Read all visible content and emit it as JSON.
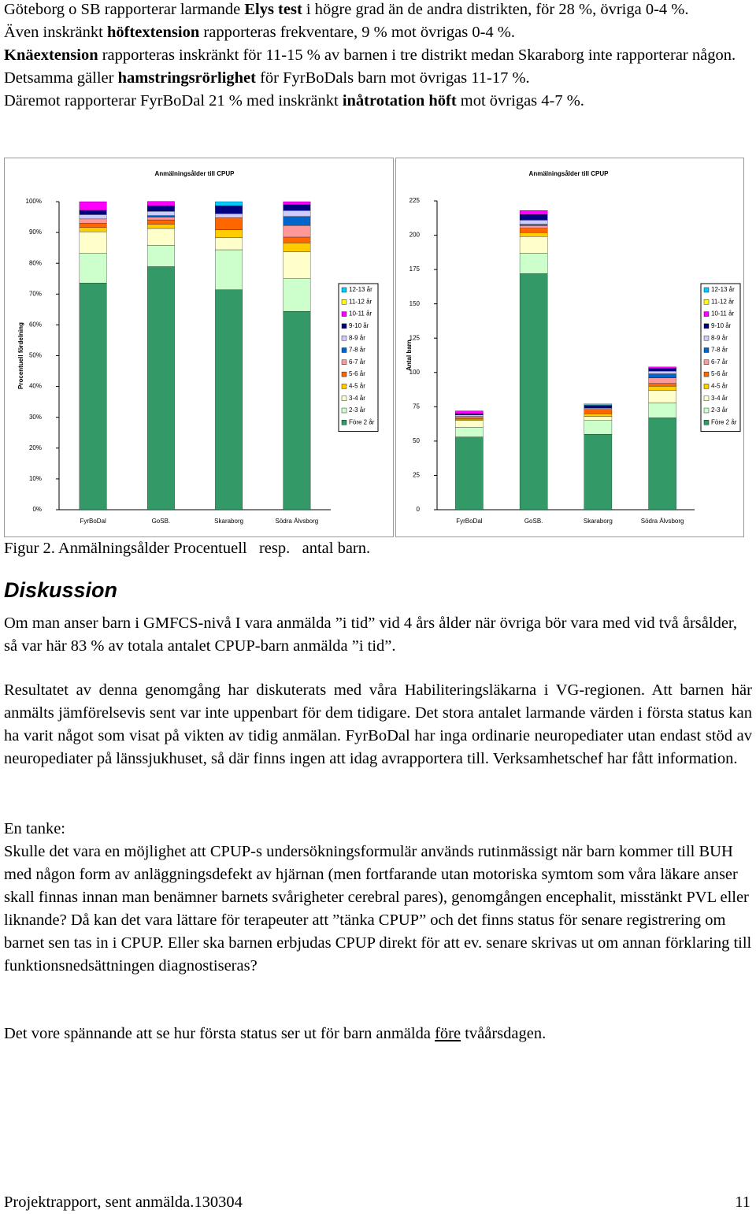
{
  "intro": [
    [
      {
        "text": "Göteborg o SB rapporterar larmande "
      },
      {
        "text": "Elys test",
        "bold": true
      },
      {
        "text": " i högre grad än de andra distrikten, för 28 %, övriga 0-4 %."
      }
    ],
    [
      {
        "text": "Även inskränkt "
      },
      {
        "text": "höftextension",
        "bold": true
      },
      {
        "text": " rapporteras frekventare, 9 % mot övrigas 0-4 %."
      }
    ],
    [
      {
        "text": "Knäextension",
        "bold": true
      },
      {
        "text": " rapporteras inskränkt för 11-15 % av barnen i tre distrikt medan Skaraborg inte rapporterar någon."
      }
    ],
    [
      {
        "text": "Detsamma gäller "
      },
      {
        "text": "hamstringsrörlighet",
        "bold": true
      },
      {
        "text": " för FyrBoDals barn mot övrigas 11-17 %."
      }
    ],
    [
      {
        "text": "Däremot rapporterar FyrBoDal 21 % med inskränkt "
      },
      {
        "text": "inåtrotation höft",
        "bold": true
      },
      {
        "text": " mot övrigas 4-7 %."
      }
    ]
  ],
  "chart_data": [
    {
      "type": "stacked_bar",
      "title": "Anmälningsålder till CPUP",
      "y_label": "Procentuell fördelning",
      "categories": [
        "FyrBoDal",
        "GoSB.",
        "Skaraborg",
        "Södra Älvsborg"
      ],
      "ylim": [
        0,
        100
      ],
      "yticks": [
        {
          "value": 0,
          "label": "0%"
        },
        {
          "value": 10,
          "label": "10%"
        },
        {
          "value": 20,
          "label": "20%"
        },
        {
          "value": 30,
          "label": "30%"
        },
        {
          "value": 40,
          "label": "40%"
        },
        {
          "value": 50,
          "label": "50%"
        },
        {
          "value": 60,
          "label": "60%"
        },
        {
          "value": 70,
          "label": "70%"
        },
        {
          "value": 80,
          "label": "80%"
        },
        {
          "value": 90,
          "label": "90%"
        },
        {
          "value": 100,
          "label": "100%"
        }
      ],
      "series": [
        {
          "name": "Före 2 år",
          "color": "#339966",
          "values": [
            73.6,
            78.9,
            71.4,
            64.4
          ]
        },
        {
          "name": "2-3 år",
          "color": "#ccffcc",
          "values": [
            9.7,
            6.9,
            13.0,
            10.6
          ]
        },
        {
          "name": "3-4 år",
          "color": "#ffffcc",
          "values": [
            6.9,
            5.5,
            3.9,
            8.7
          ]
        },
        {
          "name": "4-5 år",
          "color": "#ffcc00",
          "values": [
            1.4,
            1.4,
            2.6,
            2.9
          ]
        },
        {
          "name": "5-6 år",
          "color": "#ff6600",
          "values": [
            1.4,
            1.4,
            3.9,
            1.9
          ]
        },
        {
          "name": "6-7 år",
          "color": "#ff9999",
          "values": [
            1.4,
            0.9,
            0,
            3.8
          ]
        },
        {
          "name": "7-8 år",
          "color": "#0066cc",
          "values": [
            0,
            0.5,
            0,
            2.9
          ]
        },
        {
          "name": "8-9 år",
          "color": "#ccccff",
          "values": [
            1.4,
            1.4,
            1.3,
            1.9
          ]
        },
        {
          "name": "9-10 år",
          "color": "#000080",
          "values": [
            1.4,
            1.8,
            2.6,
            1.9
          ]
        },
        {
          "name": "10-11 år",
          "color": "#ff00ff",
          "values": [
            2.8,
            1.4,
            0,
            1.0
          ]
        },
        {
          "name": "11-12 år",
          "color": "#ffff00",
          "values": [
            0,
            0,
            0,
            0
          ]
        },
        {
          "name": "12-13 år",
          "color": "#00ccff",
          "values": [
            0,
            0,
            1.3,
            0
          ]
        }
      ]
    },
    {
      "type": "stacked_bar",
      "title": "Anmälningsålder till CPUP",
      "y_label": "Antal barn",
      "categories": [
        "FyrBoDal",
        "GoSB.",
        "Skaraborg",
        "Södra Älvsborg"
      ],
      "ylim": [
        0,
        225
      ],
      "yticks": [
        0,
        25,
        50,
        75,
        100,
        125,
        150,
        175,
        200,
        225
      ],
      "series": [
        {
          "name": "Före 2 år",
          "color": "#339966",
          "values": [
            53,
            172,
            55,
            67
          ]
        },
        {
          "name": "2-3 år",
          "color": "#ccffcc",
          "values": [
            7,
            15,
            10,
            11
          ]
        },
        {
          "name": "3-4 år",
          "color": "#ffffcc",
          "values": [
            5,
            12,
            3,
            9
          ]
        },
        {
          "name": "4-5 år",
          "color": "#ffcc00",
          "values": [
            1,
            3,
            2,
            3
          ]
        },
        {
          "name": "5-6 år",
          "color": "#ff6600",
          "values": [
            1,
            3,
            3,
            2
          ]
        },
        {
          "name": "6-7 år",
          "color": "#ff9999",
          "values": [
            1,
            2,
            0,
            4
          ]
        },
        {
          "name": "7-8 år",
          "color": "#0066cc",
          "values": [
            0,
            1,
            0,
            3
          ]
        },
        {
          "name": "8-9 år",
          "color": "#ccccff",
          "values": [
            1,
            3,
            1,
            2
          ]
        },
        {
          "name": "9-10 år",
          "color": "#000080",
          "values": [
            1,
            4,
            2,
            2
          ]
        },
        {
          "name": "10-11 år",
          "color": "#ff00ff",
          "values": [
            2,
            3,
            0,
            1
          ]
        },
        {
          "name": "11-12 år",
          "color": "#ffff00",
          "values": [
            0,
            0,
            0,
            0
          ]
        },
        {
          "name": "12-13 år",
          "color": "#00ccff",
          "values": [
            0,
            0,
            1,
            0
          ]
        }
      ]
    }
  ],
  "caption": "Figur 2. Anmälningsålder Procentuell   resp.   antal barn.",
  "discussion": {
    "heading": "Diskussion",
    "paragraphs": [
      [
        {
          "text": "Om man anser barn i GMFCS-nivå I vara anmälda ”i tid” vid 4 års ålder när övriga bör vara med vid två årsålder, så var här 83 % av totala antalet CPUP-barn anmälda ”i tid”."
        }
      ],
      [
        {
          "text": "Resultatet av denna genomgång har diskuterats med våra Habiliteringsläkarna i VG-regionen. Att barnen här anmälts jämförelsevis sent var inte uppenbart för dem tidigare. Det stora antalet larmande värden i första status kan ha varit något som visat på vikten av tidig anmälan. FyrBoDal har inga ordinarie neuropediater utan endast stöd av neuropediater på länssjukhuset, så där finns ingen att idag avrapportera till. Verksamhetschef har fått information."
        }
      ],
      [
        {
          "text": "En tanke:"
        }
      ],
      [
        {
          "text": "Skulle det vara en möjlighet att CPUP-s undersökningsformulär används rutinmässigt när barn kommer till BUH med någon form av anläggningsdefekt av hjärnan (men fortfarande utan motoriska symtom som våra läkare anser skall finnas innan man benämner barnets svårigheter cerebral pares), genomgången encephalit, misstänkt PVL eller liknande? Då kan det vara lättare för terapeuter att ”tänka CPUP” och det finns status för senare registrering om barnet sen tas in i CPUP. Eller ska barnen erbjudas CPUP direkt för att ev. senare skrivas ut om annan förklaring till funktionsnedsättningen diagnostiseras?"
        }
      ],
      [
        {
          "text": "Det vore spännande att se hur första status ser ut för barn anmälda "
        },
        {
          "text": "före",
          "underline": true
        },
        {
          "text": " tvåårsdagen."
        }
      ]
    ]
  },
  "footer": {
    "left": "Projektrapport, sent anmälda.130304",
    "page": "11"
  }
}
